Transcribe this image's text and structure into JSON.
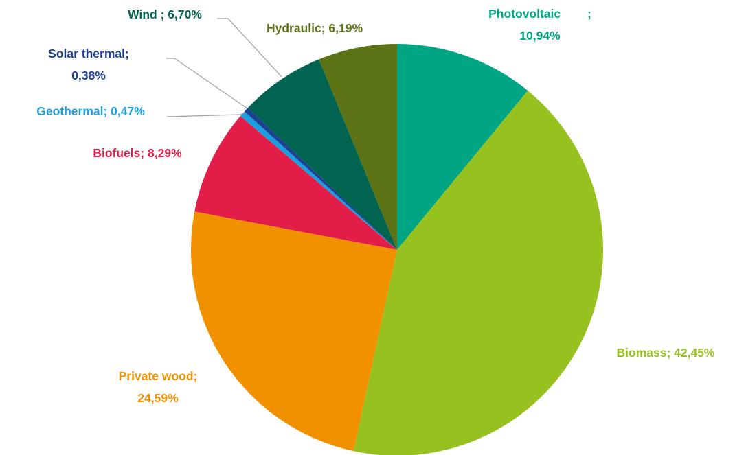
{
  "chart_data": {
    "type": "pie",
    "title": "",
    "start_angle_deg": 0,
    "direction": "clockwise",
    "slices": [
      {
        "name": "Photovoltaic",
        "value": 10.94,
        "label": [
          "Photovoltaic        ;",
          "10,94%"
        ],
        "color": "#00a683",
        "label_color": "#00a683"
      },
      {
        "name": "Biomass",
        "value": 42.45,
        "label": [
          "Biomass; 42,45%"
        ],
        "color": "#97c11f",
        "label_color": "#97c11f"
      },
      {
        "name": "Private wood",
        "value": 24.59,
        "label": [
          "Private wood;",
          "24,59%"
        ],
        "color": "#f29100",
        "label_color": "#f29100"
      },
      {
        "name": "Biofuels",
        "value": 8.29,
        "label": [
          "Biofuels; 8,29%"
        ],
        "color": "#e21d48",
        "label_color": "#e21d48"
      },
      {
        "name": "Geothermal",
        "value": 0.47,
        "label": [
          "Geothermal; 0,47%"
        ],
        "color": "#1aa0e0",
        "label_color": "#1aa0e0"
      },
      {
        "name": "Solar thermal",
        "value": 0.38,
        "label": [
          "Solar thermal;",
          "0,38%"
        ],
        "color": "#1d3f94",
        "label_color": "#1d3f94"
      },
      {
        "name": "Wind",
        "value": 6.7,
        "label": [
          "Wind ; 6,70%"
        ],
        "color": "#006450",
        "label_color": "#006450"
      },
      {
        "name": "Hydraulic",
        "value": 6.19,
        "label": [
          "Hydraulic; 6,19%"
        ],
        "color": "#5b7314",
        "label_color": "#5b7314"
      }
    ]
  }
}
